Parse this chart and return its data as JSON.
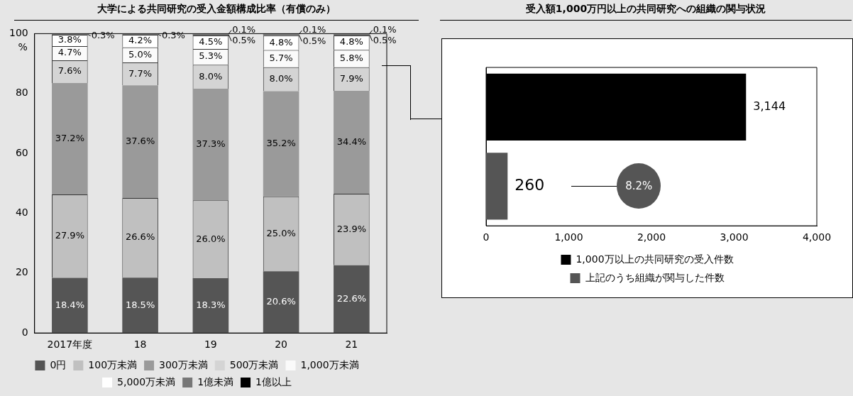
{
  "chart_data": [
    {
      "type": "bar",
      "title": "大学による共同研究の受入金額構成比率（有償のみ）",
      "ylabel": "%",
      "categories": [
        "2017年度",
        "18",
        "19",
        "20",
        "21"
      ],
      "stacked": true,
      "ylim": [
        0,
        100
      ],
      "yticks": [
        0,
        20,
        40,
        60,
        80,
        100
      ],
      "grid": false,
      "legend": "bottom",
      "series": [
        {
          "name": "0円",
          "color": "#555555",
          "values": [
            18.4,
            18.5,
            18.3,
            20.6,
            22.6
          ],
          "value_labels": [
            "18.4%",
            "18.5%",
            "18.3%",
            "20.6%",
            "22.6%"
          ]
        },
        {
          "name": "100万未満",
          "color": "#c0c0c0",
          "values": [
            27.9,
            26.6,
            26.0,
            25.0,
            23.9
          ],
          "value_labels": [
            "27.9%",
            "26.6%",
            "26.0%",
            "25.0%",
            "23.9%"
          ]
        },
        {
          "name": "300万未満",
          "color": "#9a9a9a",
          "values": [
            37.2,
            37.6,
            37.3,
            35.2,
            34.4
          ],
          "value_labels": [
            "37.2%",
            "37.6%",
            "37.3%",
            "35.2%",
            "34.4%"
          ]
        },
        {
          "name": "500万未満",
          "color": "#d4d4d4",
          "values": [
            7.6,
            7.7,
            8.0,
            8.0,
            7.9
          ],
          "value_labels": [
            "7.6%",
            "7.7%",
            "8.0%",
            "8.0%",
            "7.9%"
          ]
        },
        {
          "name": "1,000万未満",
          "color": "#fafafa",
          "values": [
            4.7,
            5.0,
            5.3,
            5.7,
            5.8
          ],
          "value_labels": [
            "4.7%",
            "5.0%",
            "5.3%",
            "5.7%",
            "5.8%"
          ]
        },
        {
          "name": "5,000万未満",
          "color": "#ffffff",
          "values": [
            3.8,
            4.2,
            4.5,
            4.8,
            4.8
          ],
          "value_labels": [
            "3.8%",
            "4.2%",
            "4.5%",
            "4.8%",
            "4.8%"
          ]
        },
        {
          "name": "1億未満",
          "color": "#777777",
          "values": [
            0.3,
            0.3,
            0.5,
            0.5,
            0.5
          ],
          "value_labels": [
            "0.3%",
            "0.3%",
            "0.5%",
            "0.5%",
            "0.5%"
          ]
        },
        {
          "name": "1億以上",
          "color": "#000000",
          "values": [
            null,
            null,
            0.1,
            0.1,
            0.1
          ],
          "value_labels": [
            null,
            null,
            "0.1%",
            "0.1%",
            "0.1%"
          ]
        }
      ]
    },
    {
      "type": "bar",
      "title": "受入額1,000万円以上の共同研究への組織の関与状況",
      "orientation": "horizontal",
      "categories": [
        null,
        null
      ],
      "xlim": [
        0,
        4000
      ],
      "xticks": [
        0,
        {
          "value": 1000,
          "label": "1,000"
        },
        {
          "value": 2000,
          "label": "2,000"
        },
        {
          "value": 3000,
          "label": "3,000"
        },
        {
          "value": 4000,
          "label": "4,000"
        }
      ],
      "grid": false,
      "legend": "bottom",
      "annotations": [
        "8.2%"
      ],
      "series": [
        {
          "name": "1,000万以上の共同研究の受入件数",
          "color": "#000000",
          "values": [
            3144,
            null
          ],
          "value_labels": [
            "3,144",
            null
          ]
        },
        {
          "name": "上記のうち組織が関与した件数",
          "color": "#555555",
          "values": [
            null,
            260
          ],
          "value_labels": [
            null,
            "260"
          ]
        }
      ]
    }
  ]
}
